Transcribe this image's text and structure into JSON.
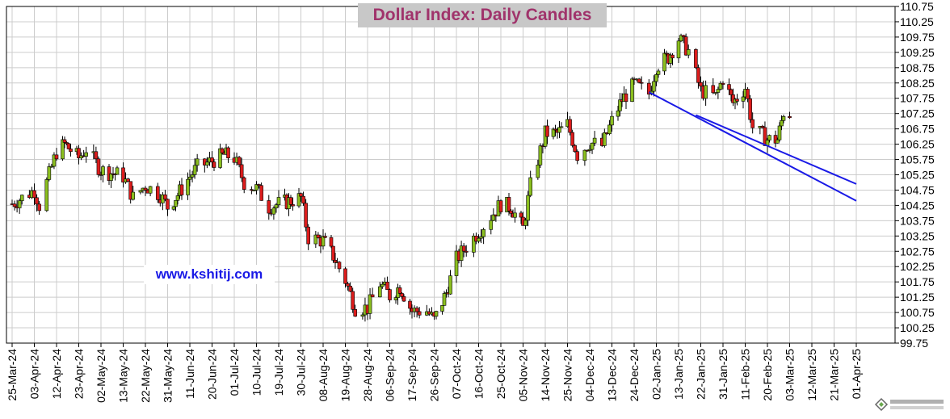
{
  "chart_data": {
    "type": "candlestick",
    "title": "Dollar Index:  Daily Candles",
    "watermark": "www.kshitij.com",
    "xlabel": "",
    "ylabel": "",
    "ylim": [
      99.75,
      110.75
    ],
    "y_ticks": [
      "110.75",
      "110.25",
      "109.75",
      "109.25",
      "108.75",
      "108.25",
      "107.75",
      "107.25",
      "106.75",
      "106.25",
      "105.75",
      "105.25",
      "104.75",
      "104.25",
      "103.75",
      "103.25",
      "102.75",
      "102.25",
      "101.75",
      "101.25",
      "100.75",
      "100.25",
      "99.75"
    ],
    "x_ticks": [
      "25-Mar-24",
      "03-Apr-24",
      "12-Apr-24",
      "23-Apr-24",
      "02-May-24",
      "13-May-24",
      "22-May-24",
      "31-May-24",
      "11-Jun-24",
      "20-Jun-24",
      "01-Jul-24",
      "10-Jul-24",
      "19-Jul-24",
      "30-Jul-24",
      "08-Aug-24",
      "19-Aug-24",
      "28-Aug-24",
      "06-Sep-24",
      "17-Sep-24",
      "26-Sep-24",
      "07-Oct-24",
      "16-Oct-24",
      "25-Oct-24",
      "05-Nov-24",
      "14-Nov-24",
      "25-Nov-24",
      "04-Dec-24",
      "13-Dec-24",
      "24-Dec-24",
      "02-Jan-25",
      "13-Jan-25",
      "22-Jan-25",
      "31-Jan-25",
      "11-Feb-25",
      "20-Feb-25",
      "03-Mar-25",
      "12-Mar-25",
      "21-Mar-25",
      "01-Apr-25"
    ],
    "grid": "horizontal and vertical",
    "up_color": "#8bbf1f",
    "down_color": "#dc1c1c",
    "trendline_color": "#1a1ae6",
    "title_color": "#a0336b",
    "watermark_color": "#1a1ae6",
    "close_points": [
      {
        "x": "25-Mar-24",
        "close": 104.3
      },
      {
        "x": "03-Apr-24",
        "close": 104.75
      },
      {
        "x": "05-Apr-24",
        "close": 104.25
      },
      {
        "x": "12-Apr-24",
        "close": 106.0
      },
      {
        "x": "16-Apr-24",
        "close": 106.25
      },
      {
        "x": "23-Apr-24",
        "close": 105.8
      },
      {
        "x": "26-Apr-24",
        "close": 106.1
      },
      {
        "x": "02-May-24",
        "close": 105.4
      },
      {
        "x": "08-May-24",
        "close": 105.3
      },
      {
        "x": "13-May-24",
        "close": 105.2
      },
      {
        "x": "17-May-24",
        "close": 104.5
      },
      {
        "x": "22-May-24",
        "close": 104.9
      },
      {
        "x": "28-May-24",
        "close": 104.6
      },
      {
        "x": "31-May-24",
        "close": 104.2
      },
      {
        "x": "05-Jun-24",
        "close": 104.6
      },
      {
        "x": "11-Jun-24",
        "close": 105.2
      },
      {
        "x": "14-Jun-24",
        "close": 105.5
      },
      {
        "x": "20-Jun-24",
        "close": 105.7
      },
      {
        "x": "26-Jun-24",
        "close": 105.9
      },
      {
        "x": "01-Jul-24",
        "close": 105.8
      },
      {
        "x": "05-Jul-24",
        "close": 105.0
      },
      {
        "x": "10-Jul-24",
        "close": 104.8
      },
      {
        "x": "15-Jul-24",
        "close": 104.2
      },
      {
        "x": "19-Jul-24",
        "close": 104.3
      },
      {
        "x": "25-Jul-24",
        "close": 104.4
      },
      {
        "x": "30-Jul-24",
        "close": 104.5
      },
      {
        "x": "02-Aug-24",
        "close": 103.2
      },
      {
        "x": "08-Aug-24",
        "close": 103.1
      },
      {
        "x": "13-Aug-24",
        "close": 102.6
      },
      {
        "x": "19-Aug-24",
        "close": 101.8
      },
      {
        "x": "23-Aug-24",
        "close": 100.9
      },
      {
        "x": "28-Aug-24",
        "close": 100.9
      },
      {
        "x": "02-Sep-24",
        "close": 101.7
      },
      {
        "x": "06-Sep-24",
        "close": 101.3
      },
      {
        "x": "11-Sep-24",
        "close": 101.6
      },
      {
        "x": "17-Sep-24",
        "close": 100.8
      },
      {
        "x": "23-Sep-24",
        "close": 100.8
      },
      {
        "x": "26-Sep-24",
        "close": 100.5
      },
      {
        "x": "02-Oct-24",
        "close": 101.4
      },
      {
        "x": "07-Oct-24",
        "close": 102.5
      },
      {
        "x": "11-Oct-24",
        "close": 102.9
      },
      {
        "x": "16-Oct-24",
        "close": 103.4
      },
      {
        "x": "22-Oct-24",
        "close": 104.0
      },
      {
        "x": "25-Oct-24",
        "close": 104.3
      },
      {
        "x": "30-Oct-24",
        "close": 104.2
      },
      {
        "x": "05-Nov-24",
        "close": 103.5
      },
      {
        "x": "08-Nov-24",
        "close": 104.9
      },
      {
        "x": "14-Nov-24",
        "close": 106.6
      },
      {
        "x": "20-Nov-24",
        "close": 106.6
      },
      {
        "x": "25-Nov-24",
        "close": 106.9
      },
      {
        "x": "29-Nov-24",
        "close": 105.9
      },
      {
        "x": "04-Dec-24",
        "close": 106.3
      },
      {
        "x": "09-Dec-24",
        "close": 106.2
      },
      {
        "x": "13-Dec-24",
        "close": 107.0
      },
      {
        "x": "18-Dec-24",
        "close": 107.7
      },
      {
        "x": "24-Dec-24",
        "close": 108.2
      },
      {
        "x": "30-Dec-24",
        "close": 107.9
      },
      {
        "x": "02-Jan-25",
        "close": 108.8
      },
      {
        "x": "08-Jan-25",
        "close": 109.1
      },
      {
        "x": "13-Jan-25",
        "close": 109.7
      },
      {
        "x": "17-Jan-25",
        "close": 109.3
      },
      {
        "x": "22-Jan-25",
        "close": 108.0
      },
      {
        "x": "28-Jan-25",
        "close": 107.8
      },
      {
        "x": "31-Jan-25",
        "close": 108.4
      },
      {
        "x": "05-Feb-25",
        "close": 107.6
      },
      {
        "x": "11-Feb-25",
        "close": 108.1
      },
      {
        "x": "14-Feb-25",
        "close": 106.8
      },
      {
        "x": "20-Feb-25",
        "close": 106.4
      },
      {
        "x": "25-Feb-25",
        "close": 106.4
      },
      {
        "x": "28-Feb-25",
        "close": 107.3
      },
      {
        "x": "03-Mar-25",
        "close": 107.25
      }
    ],
    "trendlines": [
      {
        "from": {
          "x": "30-Dec-24",
          "y": 107.95
        },
        "to": {
          "x": "01-Apr-25",
          "y": 104.4
        }
      },
      {
        "from": {
          "x": "20-Jan-25",
          "y": 107.2
        },
        "to": {
          "x": "01-Apr-25",
          "y": 104.95
        }
      }
    ]
  }
}
